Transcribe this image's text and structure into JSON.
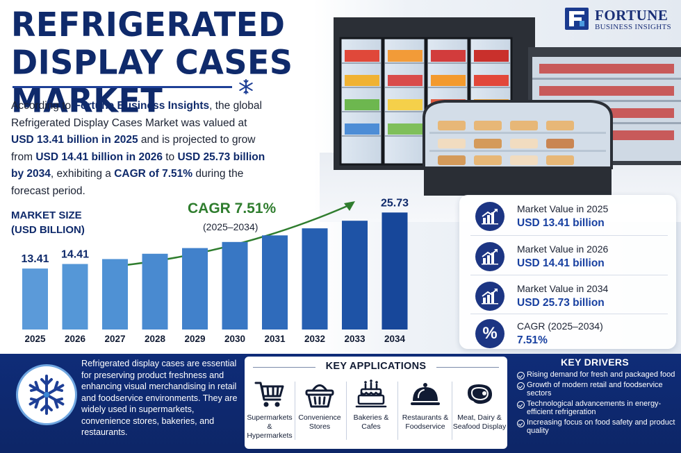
{
  "title": {
    "line1": "REFRIGERATED",
    "line2": "DISPLAY CASES MARKET"
  },
  "logo": {
    "name": "FORTUNE",
    "sub": "BUSINESS INSIGHTS"
  },
  "intro": {
    "t1": "According to ",
    "source": "Fortune Business Insights",
    "t2": ", the global Refrigerated Display Cases Market was valued at ",
    "v2025": "USD 13.41 billion in 2025",
    "t3": " and is projected to grow from ",
    "v2026": "USD 14.41 billion in 2026",
    "t4": " to ",
    "v2034": "USD 25.73 billion by 2034",
    "t5": ", exhibiting a ",
    "cagr": "CAGR of 7.51%",
    "t6": " during the forecast period."
  },
  "chart": {
    "label_line1": "MARKET SIZE",
    "label_line2": "(USD BILLION)",
    "cagr_label": "CAGR 7.51%",
    "cagr_years": "(2025–2034)"
  },
  "chart_data": {
    "type": "bar",
    "categories": [
      "2025",
      "2026",
      "2027",
      "2028",
      "2029",
      "2030",
      "2031",
      "2032",
      "2033",
      "2034"
    ],
    "values": [
      13.41,
      14.41,
      15.49,
      16.66,
      17.91,
      19.25,
      20.7,
      22.25,
      23.92,
      25.73
    ],
    "data_labels": {
      "2025": "13.41",
      "2026": "14.41",
      "2034": "25.73"
    },
    "ylim": [
      0,
      27
    ],
    "colors": [
      "#5b9ad9",
      "#5597d7",
      "#4f91d4",
      "#498ad0",
      "#4181cb",
      "#3877c4",
      "#2f6bbb",
      "#265fb1",
      "#1e53a6",
      "#17479a"
    ],
    "grid": false
  },
  "stats": [
    {
      "label": "Market Value in 2025",
      "value": "USD 13.41 billion",
      "icon": "growth-chart-icon"
    },
    {
      "label": "Market Value in 2026",
      "value": "USD 14.41 billion",
      "icon": "growth-chart-icon"
    },
    {
      "label": "Market Value in 2034",
      "value": "USD 25.73 billion",
      "icon": "growth-chart-icon"
    },
    {
      "label": "CAGR (2025–2034)",
      "value": "7.51%",
      "icon": "percent-icon",
      "symbol": "%"
    }
  ],
  "band": {
    "description": "Refrigerated display cases are essential for preserving product freshness and enhancing visual merchandising in retail and foodservice environments. They are widely used in supermarkets, convenience stores, bakeries, and restaurants.",
    "applications_title": "KEY APPLICATIONS",
    "applications": [
      {
        "line1": "Supermarkets &",
        "line2": "Hypermarkets",
        "icon": "shopping-cart-icon"
      },
      {
        "line1": "Convenience",
        "line2": "Stores",
        "icon": "basket-icon"
      },
      {
        "line1": "Bakeries &",
        "line2": "Cafes",
        "icon": "cake-icon"
      },
      {
        "line1": "Restaurants &",
        "line2": "Foodservice",
        "icon": "cloche-icon"
      },
      {
        "line1": "Meat, Dairy &",
        "line2": "Seafood Display",
        "icon": "steak-icon"
      }
    ],
    "drivers_title": "KEY DRIVERS",
    "drivers": [
      "Rising demand for fresh and packaged food",
      "Growth of modern retail and foodservice sectors",
      "Technological advancements in energy-efficient refrigeration",
      "Increasing focus on food safety and product quality"
    ]
  },
  "colors": {
    "navy": "#0f2a6b",
    "accent_blue": "#173fa0",
    "cagr_green": "#2f7d2e",
    "band": "#0f2c78"
  }
}
